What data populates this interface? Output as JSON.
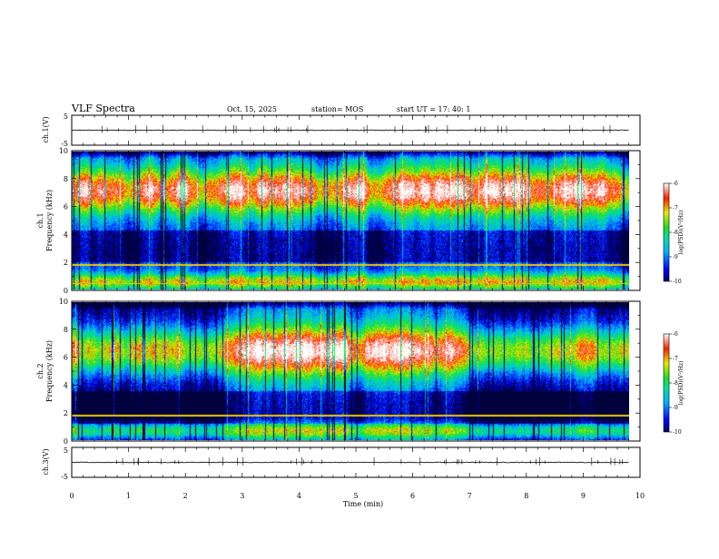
{
  "header": {
    "title": "VLF Spectra",
    "date": "Oct. 15, 2025",
    "station": "station= MOS",
    "start_ut": "start  UT  =   17: 40: 1"
  },
  "chart_data": [
    {
      "type": "line",
      "name": "ch1-waveform",
      "ylabel": "ch.1(V)",
      "ylim": [
        -5,
        5
      ],
      "y_ticks": [
        "5",
        "-5"
      ],
      "xlim": [
        0,
        10
      ],
      "series": [
        {
          "name": "ch.1",
          "level": 0,
          "noise": 0.25
        }
      ]
    },
    {
      "type": "heatmap",
      "name": "ch1-spectrogram",
      "ylabel": "Frequency (kHz)",
      "ylabel2": "ch.1",
      "ylim": [
        0,
        10
      ],
      "y_ticks": [
        "0",
        "2",
        "4",
        "6",
        "8",
        "10"
      ],
      "xlim": [
        0,
        9.8
      ],
      "band_center_khz": 7.2,
      "band_width_khz": 2.8,
      "band_intensity": 0.68,
      "low_band_center_khz": 0.6,
      "low_band_intensity": 0.5,
      "dark_khz": [
        2.0,
        4.3
      ],
      "lines_khz": [
        1.8,
        0.45
      ],
      "colorbar": {
        "label": "log(PSD)(V²/Hz)",
        "ticks": [
          "-6",
          "-7",
          "-8",
          "-9",
          "-10"
        ],
        "range": [
          -10,
          -6
        ]
      }
    },
    {
      "type": "heatmap",
      "name": "ch2-spectrogram",
      "ylabel": "Frequency (kHz)",
      "ylabel2": "ch.2",
      "ylim": [
        0,
        10
      ],
      "y_ticks": [
        "0",
        "2",
        "4",
        "6",
        "8",
        "10"
      ],
      "xlim": [
        0,
        9.8
      ],
      "band_center_khz": 6.5,
      "band_width_khz": 3.0,
      "band_intensity": 0.72,
      "low_band_center_khz": 0.7,
      "low_band_intensity": 0.45,
      "dark_khz": [
        1.2,
        3.6
      ],
      "lines_khz": [
        1.8
      ],
      "colorbar": {
        "label": "log(PSD)(V²/Hz)",
        "ticks": [
          "-6",
          "-7",
          "-8",
          "-9",
          "-10"
        ],
        "range": [
          -10,
          -6
        ]
      }
    },
    {
      "type": "line",
      "name": "ch3-waveform",
      "ylabel": "ch.3(V)",
      "ylim": [
        -5,
        5
      ],
      "y_ticks": [
        "5",
        "-5"
      ],
      "xlim": [
        0,
        10
      ],
      "series": [
        {
          "name": "ch.3",
          "level": 0,
          "noise": 0.25
        }
      ]
    }
  ],
  "x_axis": {
    "label": "Time  (min)",
    "ticks": [
      "0",
      "1",
      "2",
      "3",
      "4",
      "5",
      "6",
      "7",
      "8",
      "9",
      "10"
    ],
    "range": [
      0,
      10
    ],
    "data_end": 9.8
  }
}
